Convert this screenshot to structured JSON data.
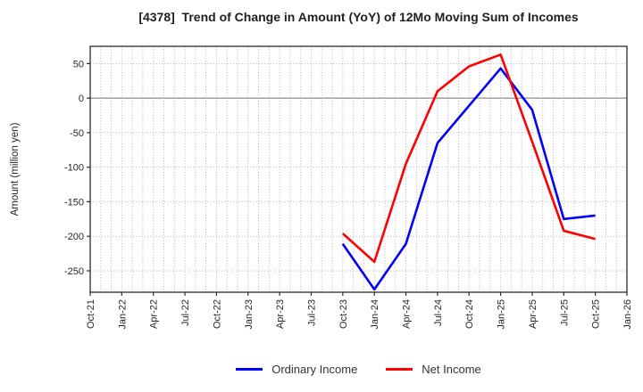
{
  "title": "[4378]  Trend of Change in Amount (YoY) of 12Mo Moving Sum of Incomes",
  "chart_data": {
    "type": "line",
    "title": "[4378]  Trend of Change in Amount (YoY) of 12Mo Moving Sum of Incomes",
    "xlabel": "",
    "ylabel": "Amount (million yen)",
    "ylim": [
      -281,
      75
    ],
    "y_ticks": [
      50,
      0,
      -50,
      -100,
      -150,
      -200,
      -250
    ],
    "x_tick_labels": [
      "Oct-21",
      "Jan-22",
      "Apr-22",
      "Jul-22",
      "Oct-22",
      "Jan-23",
      "Apr-23",
      "Jul-23",
      "Oct-23",
      "Jan-24",
      "Apr-24",
      "Jul-24",
      "Oct-24",
      "Jan-25",
      "Apr-25",
      "Jul-25",
      "Oct-25",
      "Jan-26"
    ],
    "data_categories": [
      "Oct-23",
      "Jan-24",
      "Apr-24",
      "Jul-24",
      "Oct-24",
      "Jan-25",
      "Apr-25",
      "Jul-25",
      "Oct-25"
    ],
    "series": [
      {
        "name": "Ordinary Income",
        "color": "#0000ff",
        "values": [
          -211,
          -277,
          -211,
          -65,
          -11,
          43,
          -17,
          -175,
          -170
        ]
      },
      {
        "name": "Net Income",
        "color": "#ff0000",
        "values": [
          -196,
          -237,
          -95,
          10,
          46,
          63,
          -63,
          -192,
          -204
        ]
      }
    ],
    "grid": {
      "vertical": "monthly-dotted",
      "horizontal": "every-50-dotted",
      "zero_line": "solid-gray"
    },
    "legend_position": "bottom-center",
    "colors": {
      "grid": "#b5b5b5",
      "zero_line": "#8c8c8c",
      "frame": "#2b2b2b"
    }
  }
}
